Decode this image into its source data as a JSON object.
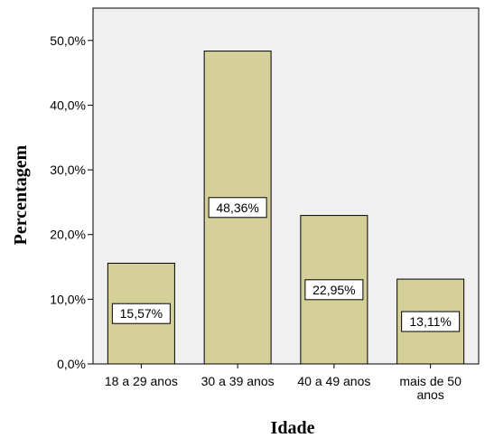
{
  "chart_data": {
    "type": "bar",
    "xlabel": "Idade",
    "ylabel": "Percentagem",
    "categories": [
      [
        "18 a 29 anos"
      ],
      [
        "30 a 39 anos"
      ],
      [
        "40 a 49 anos"
      ],
      [
        "mais de 50",
        "anos"
      ]
    ],
    "values": [
      15.57,
      48.36,
      22.95,
      13.11
    ],
    "data_labels": [
      "15,57%",
      "48,36%",
      "22,95%",
      "13,11%"
    ],
    "ylim": [
      0,
      55
    ],
    "yticks": [
      0,
      10,
      20,
      30,
      40,
      50
    ],
    "ytick_labels": [
      "0,0%",
      "10,0%",
      "20,0%",
      "30,0%",
      "40,0%",
      "50,0%"
    ],
    "grid": false,
    "colors": {
      "plot_background": "#f0f0f0",
      "bar_fill": "#d5d09a",
      "bar_stroke": "#000000",
      "label_box_fill": "#ffffff"
    }
  }
}
